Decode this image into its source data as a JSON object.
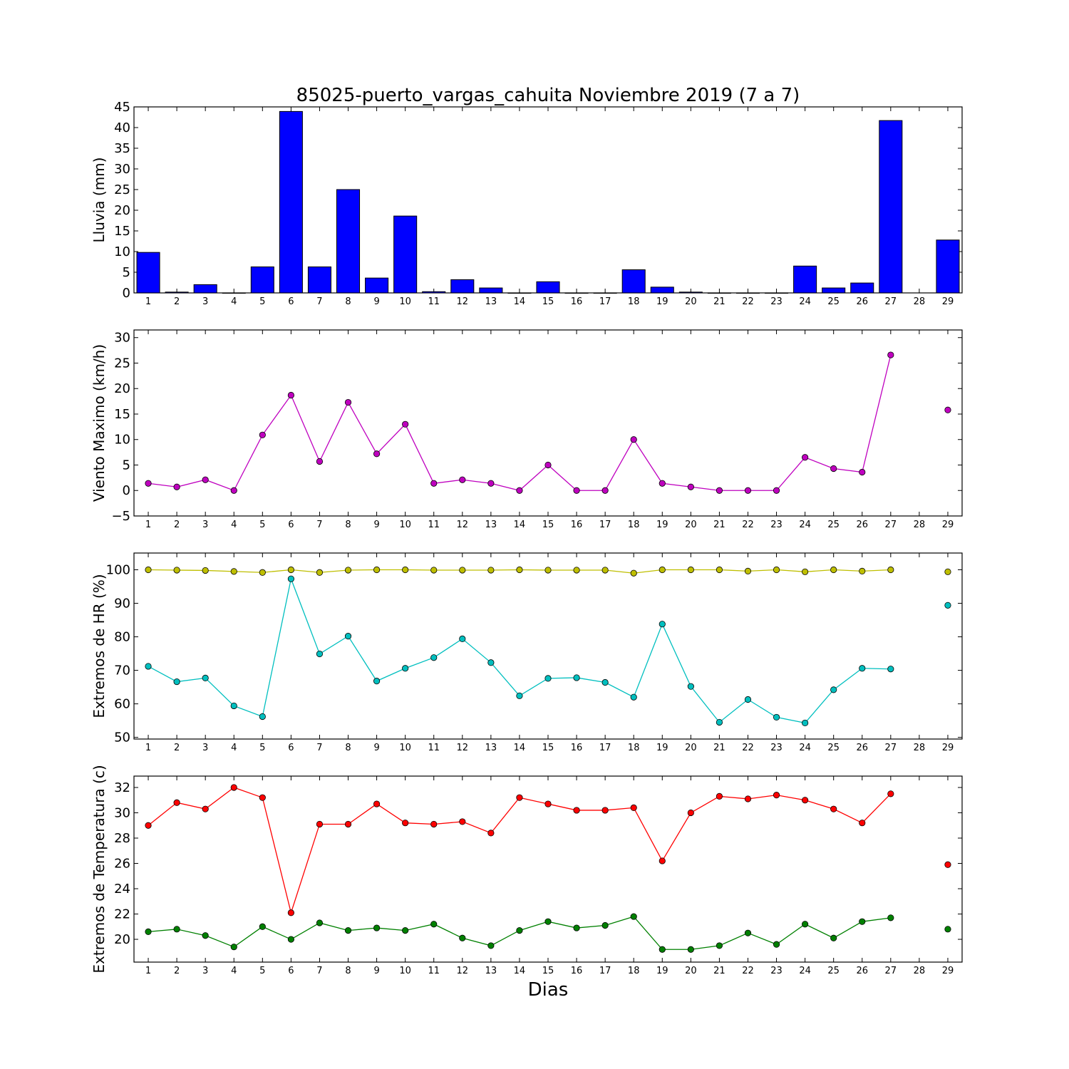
{
  "chart_data": {
    "title": "85025-puerto_vargas_cahuita Noviembre 2019  (7 a 7)",
    "xlabel": "Dias",
    "days": [
      1,
      2,
      3,
      4,
      5,
      6,
      7,
      8,
      9,
      10,
      11,
      12,
      13,
      14,
      15,
      16,
      17,
      18,
      19,
      20,
      21,
      22,
      23,
      24,
      25,
      26,
      27,
      28,
      29
    ],
    "panels": [
      {
        "type": "bar",
        "ylabel": "Lluvia (mm)",
        "ylim": [
          0,
          45
        ],
        "yticks": [
          0,
          5,
          10,
          15,
          20,
          25,
          30,
          35,
          40,
          45
        ],
        "series": [
          {
            "color": "#0000ff",
            "values": [
              9.8,
              0.2,
              2.0,
              0.0,
              6.3,
              43.9,
              6.3,
              25.0,
              3.6,
              18.6,
              0.3,
              3.2,
              1.2,
              0.0,
              2.7,
              0.0,
              0.0,
              5.6,
              1.4,
              0.2,
              0.0,
              0.0,
              0.0,
              6.5,
              1.2,
              2.4,
              41.7,
              null,
              12.8
            ]
          }
        ]
      },
      {
        "type": "line",
        "ylabel": "Viento Maximo (km/h)",
        "ylim": [
          -5,
          31.5
        ],
        "yticks": [
          -5,
          0,
          5,
          10,
          15,
          20,
          25,
          30
        ],
        "series": [
          {
            "color": "#bf00bf",
            "values": [
              1.4,
              0.7,
              2.1,
              0.0,
              10.9,
              18.7,
              5.7,
              17.3,
              7.2,
              13.0,
              1.4,
              2.1,
              1.4,
              0.0,
              5.0,
              0.0,
              0.0,
              10.0,
              1.4,
              0.7,
              0.0,
              0.0,
              0.0,
              6.5,
              4.3,
              3.6,
              26.6,
              null,
              15.8
            ]
          }
        ]
      },
      {
        "type": "line",
        "ylabel": "Extremos de HR (%)",
        "ylim": [
          49.5,
          105
        ],
        "yticks": [
          50,
          60,
          70,
          80,
          90,
          100
        ],
        "series": [
          {
            "color": "#bfbf00",
            "values": [
              100.0,
              99.9,
              99.8,
              99.5,
              99.2,
              100.0,
              99.2,
              99.9,
              100.0,
              100.0,
              99.9,
              99.9,
              99.9,
              100.0,
              99.9,
              99.9,
              99.9,
              99.0,
              100.0,
              100.0,
              100.0,
              99.6,
              100.0,
              99.4,
              100.0,
              99.6,
              100.0,
              null,
              99.4
            ]
          },
          {
            "color": "#00bfbf",
            "values": [
              71.2,
              66.6,
              67.7,
              59.4,
              56.2,
              97.3,
              74.9,
              80.2,
              66.8,
              70.6,
              73.8,
              79.4,
              72.3,
              62.4,
              67.6,
              67.8,
              66.4,
              62.0,
              83.8,
              65.2,
              54.5,
              61.3,
              56.0,
              54.3,
              64.2,
              70.6,
              70.4,
              null,
              89.4
            ]
          }
        ]
      },
      {
        "type": "line",
        "ylabel": "Extremos de Temperatura (c)",
        "ylim": [
          18.2,
          32.9
        ],
        "yticks": [
          20,
          22,
          24,
          26,
          28,
          30,
          32
        ],
        "series": [
          {
            "color": "#ff0000",
            "values": [
              29.0,
              30.8,
              30.3,
              32.0,
              31.2,
              22.1,
              29.1,
              29.1,
              30.7,
              29.2,
              29.1,
              29.3,
              28.4,
              31.2,
              30.7,
              30.2,
              30.2,
              30.4,
              26.2,
              30.0,
              31.3,
              31.1,
              31.4,
              31.0,
              30.3,
              29.2,
              31.5,
              null,
              25.9
            ]
          },
          {
            "color": "#008000",
            "values": [
              20.6,
              20.8,
              20.3,
              19.4,
              21.0,
              20.0,
              21.3,
              20.7,
              20.9,
              20.7,
              21.2,
              20.1,
              19.5,
              20.7,
              21.4,
              20.9,
              21.1,
              21.8,
              19.2,
              19.2,
              19.5,
              20.5,
              19.6,
              21.2,
              20.1,
              21.4,
              21.7,
              null,
              20.8
            ]
          }
        ]
      }
    ]
  }
}
